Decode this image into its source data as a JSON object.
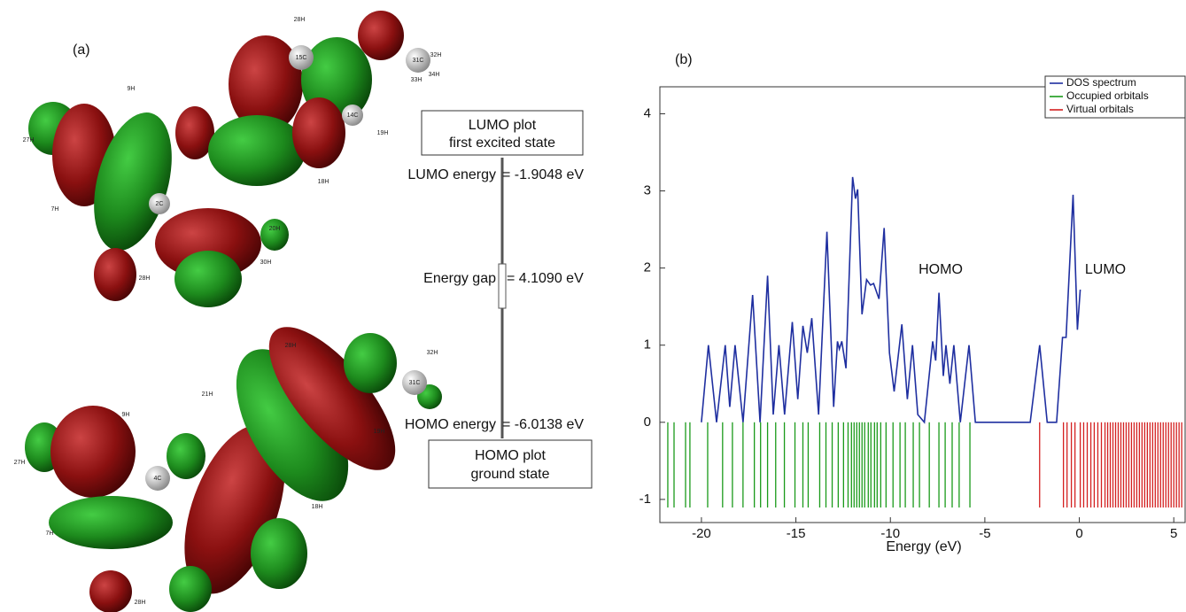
{
  "panel_a": {
    "label": "(a)",
    "lumo_box": [
      "LUMO plot",
      "first excited state"
    ],
    "homo_box": [
      "HOMO plot",
      "ground state"
    ],
    "lumo_energy": {
      "name": "LUMO energy",
      "value": "= -1.9048 eV"
    },
    "energy_gap": {
      "name": "Energy gap",
      "value": "= 4.1090 eV"
    },
    "homo_energy": {
      "name": "HOMO energy",
      "value": "= -6.0138 eV"
    },
    "atoms_top": [
      "28H",
      "15C",
      "32H",
      "31C",
      "33H",
      "34H",
      "14C",
      "19H",
      "9H",
      "27H",
      "2C",
      "7H",
      "18H",
      "20H",
      "30H",
      "28H"
    ],
    "atoms_bottom": [
      "28H",
      "32H",
      "31C",
      "21H",
      "9H",
      "27H",
      "4C",
      "19H",
      "7H",
      "18H",
      "28H"
    ]
  },
  "chart_data": {
    "type": "line",
    "panel_label": "(b)",
    "xlabel": "Energy (eV)",
    "xlim": [
      -22.2,
      5.6
    ],
    "xticks": [
      -20,
      -15,
      -10,
      -5,
      0,
      5
    ],
    "ylim": [
      -1.3,
      4.35
    ],
    "yticks": [
      -1,
      0,
      1,
      2,
      3,
      4
    ],
    "legend": "upper right",
    "annotations": [
      "HOMO",
      "LUMO"
    ],
    "series": [
      {
        "name": "DOS spectrum",
        "color": "#1f2fa0",
        "type": "line",
        "x": [
          -20,
          -19.63,
          -19.2,
          -18.74,
          -18.5,
          -18.22,
          -17.8,
          -17.29,
          -16.9,
          -16.5,
          -16.2,
          -15.9,
          -15.6,
          -15.19,
          -14.9,
          -14.63,
          -14.4,
          -14.16,
          -13.8,
          -13.36,
          -13.0,
          -12.8,
          -12.7,
          -12.57,
          -12.35,
          -12.0,
          -11.85,
          -11.73,
          -11.5,
          -11.26,
          -11.05,
          -10.89,
          -10.6,
          -10.33,
          -10.05,
          -9.8,
          -9.39,
          -9.1,
          -8.83,
          -8.55,
          -8.2,
          -7.76,
          -7.6,
          -7.43,
          -7.2,
          -7.06,
          -6.85,
          -6.64,
          -6.3,
          -5.84,
          -5.5,
          -2.6,
          -2.1,
          -1.7,
          -1.2,
          -0.89,
          -0.7,
          -0.33,
          -0.1,
          0.05
        ],
        "values": [
          0,
          1.0,
          0,
          1.0,
          0.2,
          1.0,
          0,
          1.65,
          0,
          1.9,
          0.1,
          1.0,
          0.1,
          1.3,
          0.3,
          1.25,
          0.9,
          1.35,
          0.1,
          2.47,
          0.2,
          1.05,
          0.95,
          1.05,
          0.7,
          3.18,
          2.9,
          3.02,
          1.4,
          1.85,
          1.78,
          1.8,
          1.6,
          2.52,
          0.9,
          0.4,
          1.27,
          0.3,
          1.0,
          0.1,
          0,
          1.05,
          0.8,
          1.68,
          0.6,
          1.0,
          0.5,
          1.0,
          0,
          1.0,
          0,
          0,
          1.0,
          0,
          0,
          1.1,
          1.1,
          2.95,
          1.2,
          1.72
        ]
      },
      {
        "name": "Occupied orbitals",
        "color": "#1a9a1a",
        "type": "stem",
        "x": [
          -21.78,
          -21.45,
          -20.84,
          -20.61,
          -19.67,
          -18.88,
          -18.36,
          -17.8,
          -17.2,
          -16.87,
          -16.5,
          -16.07,
          -15.61,
          -15.05,
          -14.63,
          -14.35,
          -13.74,
          -13.41,
          -13.08,
          -12.76,
          -12.48,
          -12.24,
          -12.06,
          -11.92,
          -11.78,
          -11.64,
          -11.5,
          -11.36,
          -11.17,
          -11.03,
          -10.84,
          -10.7,
          -10.51,
          -10.23,
          -9.86,
          -9.49,
          -9.21,
          -8.79,
          -8.46,
          -7.94,
          -7.43,
          -7.1,
          -6.73,
          -6.36,
          -5.79
        ]
      },
      {
        "name": "Virtual orbitals",
        "color": "#d42020",
        "type": "stem",
        "x": [
          -2.1,
          -0.84,
          -0.65,
          -0.42,
          -0.23,
          0.05,
          0.23,
          0.42,
          0.61,
          0.79,
          0.98,
          1.17,
          1.36,
          1.5,
          1.64,
          1.78,
          1.92,
          2.06,
          2.2,
          2.34,
          2.48,
          2.62,
          2.76,
          2.9,
          3.04,
          3.18,
          3.32,
          3.46,
          3.6,
          3.74,
          3.88,
          4.02,
          4.16,
          4.3,
          4.44,
          4.58,
          4.72,
          4.86,
          5.0,
          5.14,
          5.28,
          5.42
        ]
      }
    ]
  }
}
